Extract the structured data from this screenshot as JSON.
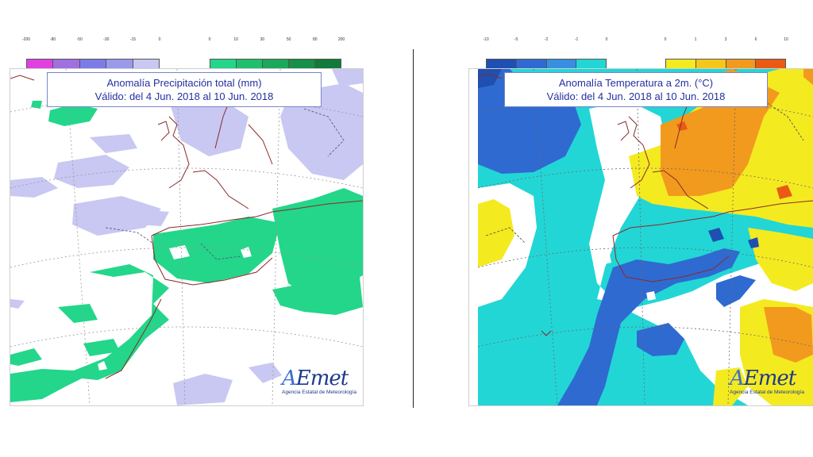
{
  "precip": {
    "title_line1": "Anomalía Precipitación total (mm)",
    "title_line2": "Válido: del 4 Jun. 2018 al 10 Jun. 2018",
    "legend_neg": {
      "ticks": [
        "-200",
        "-80",
        "-50",
        "-30",
        "-15",
        "0"
      ],
      "colors": [
        "#e040e0",
        "#a070e0",
        "#7c7ce8",
        "#9a9aea",
        "#c8c8f2"
      ]
    },
    "legend_pos": {
      "ticks": [
        "0",
        "10",
        "30",
        "50",
        "80",
        "200"
      ],
      "colors": [
        "#23d68a",
        "#1fbf6e",
        "#1aa85a",
        "#168f48",
        "#127a3a"
      ]
    }
  },
  "temp": {
    "title_line1": "Anomalía Temperatura a 2m. (°C)",
    "title_line2": "Válido: del 4 Jun. 2018 al 10 Jun. 2018",
    "legend_neg": {
      "ticks": [
        "-10",
        "-5",
        "-2",
        "-1",
        "0"
      ],
      "colors": [
        "#1f4fb0",
        "#2f6ad0",
        "#3a8ee0",
        "#22d6d6"
      ]
    },
    "legend_pos": {
      "ticks": [
        "0",
        "1",
        "3",
        "6",
        "10"
      ],
      "colors": [
        "#f4ea20",
        "#f6c71a",
        "#f29a1e",
        "#ea5a14"
      ]
    }
  },
  "logo": {
    "wordmark": "AEmet",
    "subtitle": "Agencia Estatal de Meteorología"
  }
}
